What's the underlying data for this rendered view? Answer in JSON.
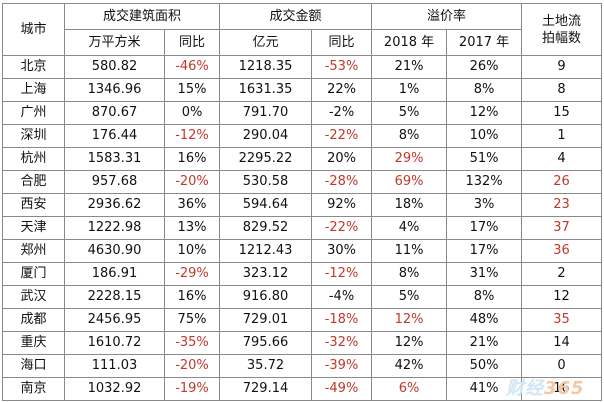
{
  "header": {
    "city": "城市",
    "area_group": "成交建筑面积",
    "amount_group": "成交金额",
    "premium_group": "溢价率",
    "failed_group": "土地流拍幅数",
    "area_unit": "万平方米",
    "yoy": "同比",
    "amount_unit": "亿元",
    "y2018": "2018 年",
    "y2017": "2017 年"
  },
  "rows": [
    {
      "city": "北京",
      "area": "580.82",
      "area_yoy": "-46%",
      "area_yoy_red": true,
      "amount": "1218.35",
      "amount_yoy": "-53%",
      "amount_yoy_red": true,
      "p2018": "21%",
      "p2018_red": false,
      "p2017": "26%",
      "failed": "9",
      "failed_red": false
    },
    {
      "city": "上海",
      "area": "1346.96",
      "area_yoy": "15%",
      "area_yoy_red": false,
      "amount": "1631.35",
      "amount_yoy": "22%",
      "amount_yoy_red": false,
      "p2018": "1%",
      "p2018_red": false,
      "p2017": "8%",
      "failed": "8",
      "failed_red": false
    },
    {
      "city": "广州",
      "area": "870.67",
      "area_yoy": "0%",
      "area_yoy_red": false,
      "amount": "791.70",
      "amount_yoy": "-2%",
      "amount_yoy_red": false,
      "p2018": "5%",
      "p2018_red": false,
      "p2017": "12%",
      "failed": "15",
      "failed_red": false
    },
    {
      "city": "深圳",
      "area": "176.44",
      "area_yoy": "-12%",
      "area_yoy_red": true,
      "amount": "290.04",
      "amount_yoy": "-22%",
      "amount_yoy_red": true,
      "p2018": "8%",
      "p2018_red": false,
      "p2017": "10%",
      "failed": "1",
      "failed_red": false
    },
    {
      "city": "杭州",
      "area": "1583.31",
      "area_yoy": "16%",
      "area_yoy_red": false,
      "amount": "2295.22",
      "amount_yoy": "20%",
      "amount_yoy_red": false,
      "p2018": "29%",
      "p2018_red": true,
      "p2017": "51%",
      "failed": "4",
      "failed_red": false
    },
    {
      "city": "合肥",
      "area": "957.68",
      "area_yoy": "-20%",
      "area_yoy_red": true,
      "amount": "530.58",
      "amount_yoy": "-28%",
      "amount_yoy_red": true,
      "p2018": "69%",
      "p2018_red": true,
      "p2017": "132%",
      "failed": "26",
      "failed_red": true
    },
    {
      "city": "西安",
      "area": "2936.62",
      "area_yoy": "36%",
      "area_yoy_red": false,
      "amount": "594.64",
      "amount_yoy": "92%",
      "amount_yoy_red": false,
      "p2018": "18%",
      "p2018_red": false,
      "p2017": "3%",
      "failed": "23",
      "failed_red": true
    },
    {
      "city": "天津",
      "area": "1222.98",
      "area_yoy": "13%",
      "area_yoy_red": false,
      "amount": "829.52",
      "amount_yoy": "-22%",
      "amount_yoy_red": true,
      "p2018": "4%",
      "p2018_red": false,
      "p2017": "17%",
      "failed": "37",
      "failed_red": true
    },
    {
      "city": "郑州",
      "area": "4630.90",
      "area_yoy": "10%",
      "area_yoy_red": false,
      "amount": "1212.43",
      "amount_yoy": "30%",
      "amount_yoy_red": false,
      "p2018": "11%",
      "p2018_red": false,
      "p2017": "17%",
      "failed": "36",
      "failed_red": true
    },
    {
      "city": "厦门",
      "area": "186.91",
      "area_yoy": "-29%",
      "area_yoy_red": true,
      "amount": "323.12",
      "amount_yoy": "-12%",
      "amount_yoy_red": true,
      "p2018": "8%",
      "p2018_red": false,
      "p2017": "31%",
      "failed": "2",
      "failed_red": false
    },
    {
      "city": "武汉",
      "area": "2228.15",
      "area_yoy": "16%",
      "area_yoy_red": false,
      "amount": "916.80",
      "amount_yoy": "-4%",
      "amount_yoy_red": false,
      "p2018": "5%",
      "p2018_red": false,
      "p2017": "8%",
      "failed": "12",
      "failed_red": false
    },
    {
      "city": "成都",
      "area": "2456.95",
      "area_yoy": "75%",
      "area_yoy_red": false,
      "amount": "729.01",
      "amount_yoy": "-18%",
      "amount_yoy_red": true,
      "p2018": "12%",
      "p2018_red": true,
      "p2017": "48%",
      "failed": "35",
      "failed_red": true
    },
    {
      "city": "重庆",
      "area": "1610.72",
      "area_yoy": "-35%",
      "area_yoy_red": true,
      "amount": "795.66",
      "amount_yoy": "-32%",
      "amount_yoy_red": true,
      "p2018": "12%",
      "p2018_red": false,
      "p2017": "21%",
      "failed": "14",
      "failed_red": false
    },
    {
      "city": "海口",
      "area": "111.03",
      "area_yoy": "-20%",
      "area_yoy_red": true,
      "amount": "35.72",
      "amount_yoy": "-39%",
      "amount_yoy_red": true,
      "p2018": "42%",
      "p2018_red": false,
      "p2017": "50%",
      "failed": "0",
      "failed_red": false
    },
    {
      "city": "南京",
      "area": "1032.92",
      "area_yoy": "-19%",
      "area_yoy_red": true,
      "amount": "729.14",
      "amount_yoy": "-49%",
      "amount_yoy_red": true,
      "p2018": "6%",
      "p2018_red": true,
      "p2017": "41%",
      "failed": "16",
      "failed_red": false
    }
  ],
  "colors": {
    "negative": "#c0392b",
    "border": "#8a8a8a"
  },
  "watermark": {
    "brand": "财经",
    "number": "365"
  }
}
